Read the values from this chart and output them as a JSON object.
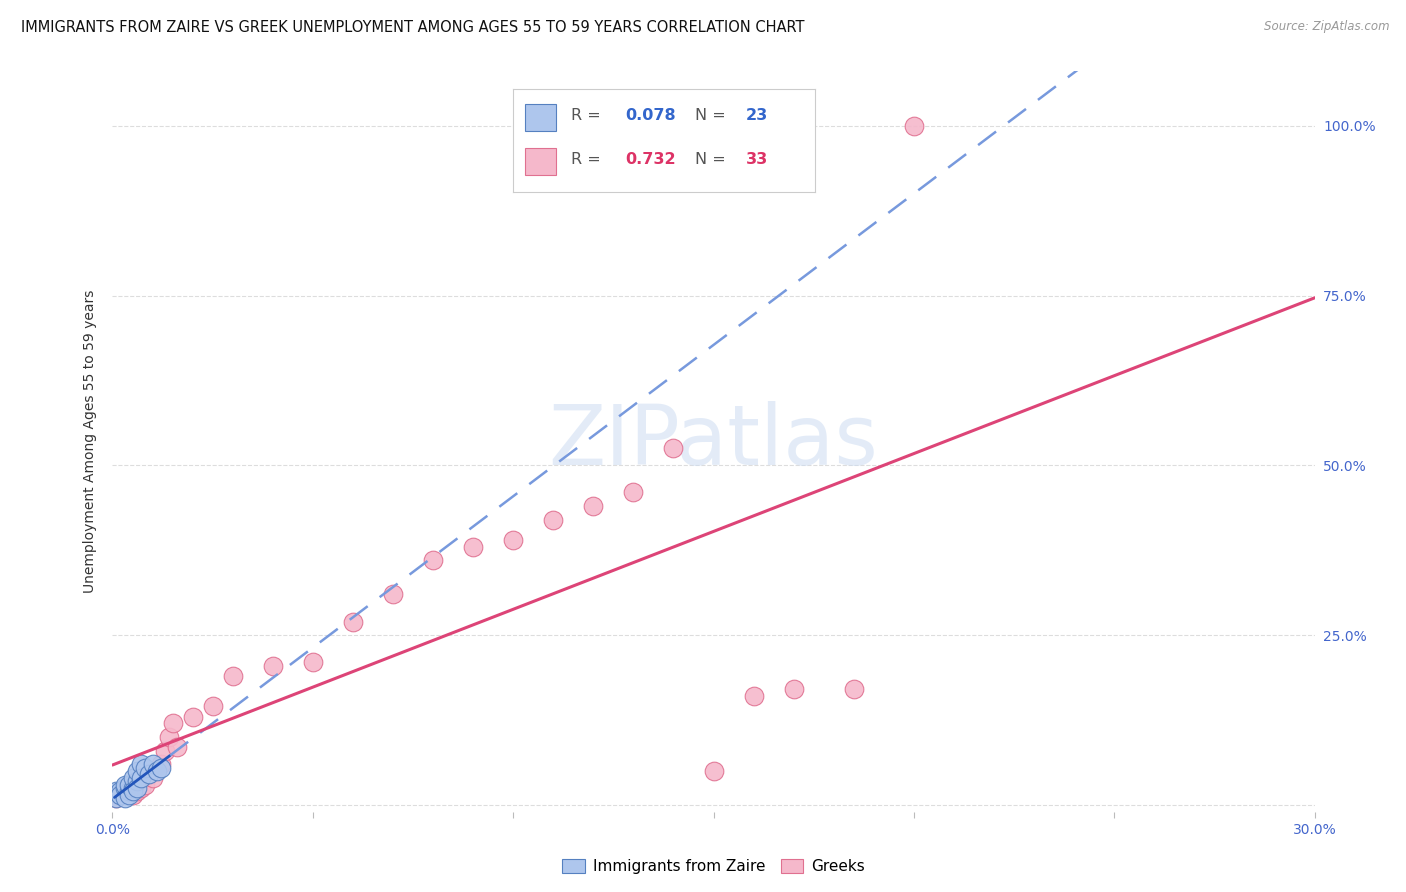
{
  "title": "IMMIGRANTS FROM ZAIRE VS GREEK UNEMPLOYMENT AMONG AGES 55 TO 59 YEARS CORRELATION CHART",
  "source": "Source: ZipAtlas.com",
  "ylabel": "Unemployment Among Ages 55 to 59 years",
  "xlim": [
    0.0,
    0.3
  ],
  "ylim": [
    -0.01,
    1.08
  ],
  "xticks": [
    0.0,
    0.05,
    0.1,
    0.15,
    0.2,
    0.25,
    0.3
  ],
  "xtick_labels": [
    "0.0%",
    "",
    "",
    "",
    "",
    "",
    "30.0%"
  ],
  "ytick_positions": [
    0.0,
    0.25,
    0.5,
    0.75,
    1.0
  ],
  "ytick_labels": [
    "",
    "25.0%",
    "50.0%",
    "75.0%",
    "100.0%"
  ],
  "background_color": "#ffffff",
  "series1_label": "Immigrants from Zaire",
  "series1_color": "#aec6ed",
  "series1_edge_color": "#5580c0",
  "series2_label": "Greeks",
  "series2_color": "#f5b8cb",
  "series2_edge_color": "#e07090",
  "series1_x": [
    0.001,
    0.001,
    0.002,
    0.002,
    0.003,
    0.003,
    0.003,
    0.004,
    0.004,
    0.004,
    0.005,
    0.005,
    0.005,
    0.006,
    0.006,
    0.006,
    0.007,
    0.007,
    0.008,
    0.009,
    0.01,
    0.011,
    0.012
  ],
  "series1_y": [
    0.02,
    0.01,
    0.02,
    0.015,
    0.025,
    0.01,
    0.03,
    0.02,
    0.015,
    0.03,
    0.025,
    0.04,
    0.02,
    0.035,
    0.025,
    0.05,
    0.06,
    0.04,
    0.055,
    0.045,
    0.06,
    0.05,
    0.055
  ],
  "series2_x": [
    0.001,
    0.002,
    0.003,
    0.004,
    0.005,
    0.006,
    0.007,
    0.008,
    0.01,
    0.012,
    0.013,
    0.014,
    0.015,
    0.016,
    0.02,
    0.025,
    0.03,
    0.04,
    0.05,
    0.06,
    0.07,
    0.08,
    0.09,
    0.1,
    0.11,
    0.12,
    0.13,
    0.14,
    0.15,
    0.16,
    0.17,
    0.185,
    0.2
  ],
  "series2_y": [
    0.01,
    0.015,
    0.02,
    0.025,
    0.015,
    0.02,
    0.025,
    0.03,
    0.04,
    0.06,
    0.08,
    0.1,
    0.12,
    0.085,
    0.13,
    0.145,
    0.19,
    0.205,
    0.21,
    0.27,
    0.31,
    0.36,
    0.38,
    0.39,
    0.42,
    0.44,
    0.46,
    0.525,
    0.05,
    0.16,
    0.17,
    0.17,
    1.0
  ],
  "grid_color": "#dddddd",
  "line1_color": "#2255bb",
  "line2_color": "#dd4477",
  "trendline1_color": "#7799dd",
  "title_fontsize": 10.5,
  "axis_label_fontsize": 10,
  "tick_fontsize": 10,
  "legend_fontsize": 11,
  "r1_color": "#3366cc",
  "r2_color": "#dd3366"
}
